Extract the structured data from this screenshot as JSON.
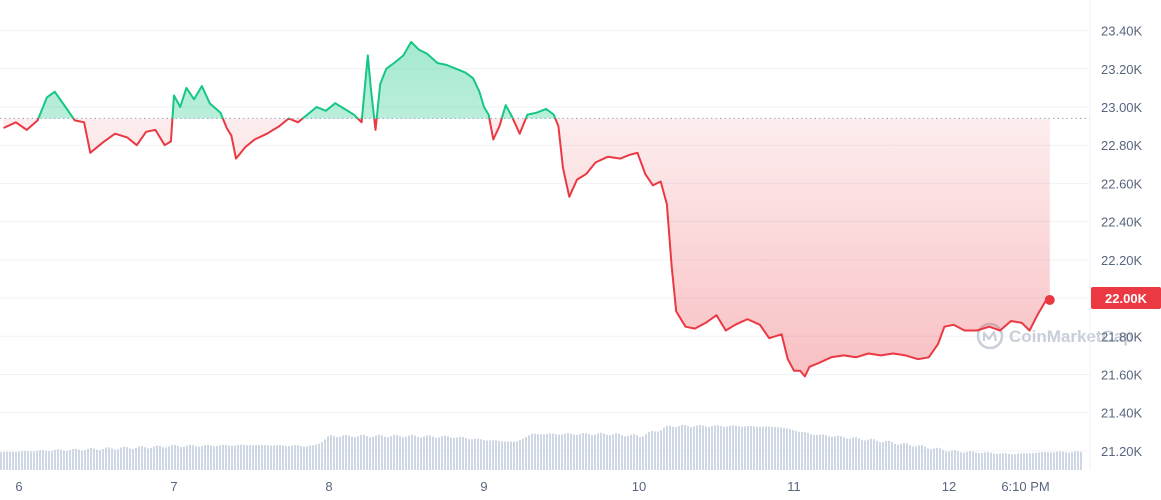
{
  "chart_data": {
    "type": "line",
    "title": "",
    "xlabel": "",
    "ylabel": "",
    "ylim": [
      21100,
      23560
    ],
    "y_ticks": [
      "23.40K",
      "23.20K",
      "23.00K",
      "22.80K",
      "22.60K",
      "22.40K",
      "22.20K",
      "22.00K",
      "21.80K",
      "21.60K",
      "21.40K",
      "21.20K"
    ],
    "x_ticks": [
      "6",
      "7",
      "8",
      "9",
      "10",
      "11",
      "12",
      "6:10 PM"
    ],
    "reference_price": 22940,
    "current_price_label": "22.00K",
    "colors": {
      "up": "#16c784",
      "down": "#ea3943",
      "volume": "#cfd6e4",
      "axis_text": "#58667e"
    },
    "series": [
      {
        "values": [
          {
            "x": 5.9,
            "y": 22890
          },
          {
            "x": 5.98,
            "y": 22920
          },
          {
            "x": 6.05,
            "y": 22880
          },
          {
            "x": 6.12,
            "y": 22930
          },
          {
            "x": 6.18,
            "y": 23050
          },
          {
            "x": 6.23,
            "y": 23080
          },
          {
            "x": 6.3,
            "y": 23000
          },
          {
            "x": 6.36,
            "y": 22930
          },
          {
            "x": 6.42,
            "y": 22920
          },
          {
            "x": 6.46,
            "y": 22760
          },
          {
            "x": 6.55,
            "y": 22820
          },
          {
            "x": 6.62,
            "y": 22860
          },
          {
            "x": 6.7,
            "y": 22840
          },
          {
            "x": 6.76,
            "y": 22800
          },
          {
            "x": 6.82,
            "y": 22870
          },
          {
            "x": 6.88,
            "y": 22880
          },
          {
            "x": 6.94,
            "y": 22800
          },
          {
            "x": 6.98,
            "y": 22820
          },
          {
            "x": 7.0,
            "y": 23060
          },
          {
            "x": 7.04,
            "y": 23000
          },
          {
            "x": 7.08,
            "y": 23100
          },
          {
            "x": 7.13,
            "y": 23040
          },
          {
            "x": 7.18,
            "y": 23110
          },
          {
            "x": 7.23,
            "y": 23020
          },
          {
            "x": 7.3,
            "y": 22970
          },
          {
            "x": 7.34,
            "y": 22890
          },
          {
            "x": 7.37,
            "y": 22850
          },
          {
            "x": 7.4,
            "y": 22730
          },
          {
            "x": 7.46,
            "y": 22790
          },
          {
            "x": 7.52,
            "y": 22830
          },
          {
            "x": 7.6,
            "y": 22860
          },
          {
            "x": 7.68,
            "y": 22900
          },
          {
            "x": 7.74,
            "y": 22940
          },
          {
            "x": 7.8,
            "y": 22920
          },
          {
            "x": 7.86,
            "y": 22960
          },
          {
            "x": 7.92,
            "y": 23000
          },
          {
            "x": 7.98,
            "y": 22980
          },
          {
            "x": 8.04,
            "y": 23020
          },
          {
            "x": 8.1,
            "y": 22990
          },
          {
            "x": 8.16,
            "y": 22960
          },
          {
            "x": 8.21,
            "y": 22920
          },
          {
            "x": 8.25,
            "y": 23270
          },
          {
            "x": 8.27,
            "y": 23100
          },
          {
            "x": 8.3,
            "y": 22880
          },
          {
            "x": 8.33,
            "y": 23120
          },
          {
            "x": 8.37,
            "y": 23200
          },
          {
            "x": 8.42,
            "y": 23230
          },
          {
            "x": 8.48,
            "y": 23270
          },
          {
            "x": 8.53,
            "y": 23340
          },
          {
            "x": 8.58,
            "y": 23300
          },
          {
            "x": 8.63,
            "y": 23280
          },
          {
            "x": 8.7,
            "y": 23230
          },
          {
            "x": 8.76,
            "y": 23220
          },
          {
            "x": 8.82,
            "y": 23200
          },
          {
            "x": 8.88,
            "y": 23180
          },
          {
            "x": 8.93,
            "y": 23150
          },
          {
            "x": 8.97,
            "y": 23080
          },
          {
            "x": 9.0,
            "y": 23000
          },
          {
            "x": 9.03,
            "y": 22960
          },
          {
            "x": 9.06,
            "y": 22830
          },
          {
            "x": 9.1,
            "y": 22900
          },
          {
            "x": 9.14,
            "y": 23010
          },
          {
            "x": 9.18,
            "y": 22950
          },
          {
            "x": 9.23,
            "y": 22860
          },
          {
            "x": 9.28,
            "y": 22960
          },
          {
            "x": 9.34,
            "y": 22970
          },
          {
            "x": 9.4,
            "y": 22990
          },
          {
            "x": 9.45,
            "y": 22960
          },
          {
            "x": 9.48,
            "y": 22900
          },
          {
            "x": 9.51,
            "y": 22680
          },
          {
            "x": 9.55,
            "y": 22530
          },
          {
            "x": 9.6,
            "y": 22620
          },
          {
            "x": 9.66,
            "y": 22650
          },
          {
            "x": 9.72,
            "y": 22710
          },
          {
            "x": 9.8,
            "y": 22740
          },
          {
            "x": 9.88,
            "y": 22730
          },
          {
            "x": 9.94,
            "y": 22750
          },
          {
            "x": 9.99,
            "y": 22760
          },
          {
            "x": 10.04,
            "y": 22650
          },
          {
            "x": 10.09,
            "y": 22590
          },
          {
            "x": 10.14,
            "y": 22610
          },
          {
            "x": 10.18,
            "y": 22490
          },
          {
            "x": 10.21,
            "y": 22170
          },
          {
            "x": 10.24,
            "y": 21930
          },
          {
            "x": 10.3,
            "y": 21850
          },
          {
            "x": 10.36,
            "y": 21840
          },
          {
            "x": 10.43,
            "y": 21870
          },
          {
            "x": 10.5,
            "y": 21910
          },
          {
            "x": 10.56,
            "y": 21830
          },
          {
            "x": 10.62,
            "y": 21860
          },
          {
            "x": 10.7,
            "y": 21890
          },
          {
            "x": 10.78,
            "y": 21860
          },
          {
            "x": 10.84,
            "y": 21790
          },
          {
            "x": 10.92,
            "y": 21810
          },
          {
            "x": 10.96,
            "y": 21680
          },
          {
            "x": 11.0,
            "y": 21620
          },
          {
            "x": 11.04,
            "y": 21620
          },
          {
            "x": 11.07,
            "y": 21590
          },
          {
            "x": 11.1,
            "y": 21640
          },
          {
            "x": 11.16,
            "y": 21660
          },
          {
            "x": 11.24,
            "y": 21690
          },
          {
            "x": 11.32,
            "y": 21700
          },
          {
            "x": 11.4,
            "y": 21690
          },
          {
            "x": 11.48,
            "y": 21710
          },
          {
            "x": 11.56,
            "y": 21700
          },
          {
            "x": 11.64,
            "y": 21710
          },
          {
            "x": 11.72,
            "y": 21700
          },
          {
            "x": 11.8,
            "y": 21680
          },
          {
            "x": 11.87,
            "y": 21690
          },
          {
            "x": 11.93,
            "y": 21760
          },
          {
            "x": 11.97,
            "y": 21850
          },
          {
            "x": 12.03,
            "y": 21860
          },
          {
            "x": 12.1,
            "y": 21830
          },
          {
            "x": 12.18,
            "y": 21830
          },
          {
            "x": 12.26,
            "y": 21850
          },
          {
            "x": 12.33,
            "y": 21830
          },
          {
            "x": 12.4,
            "y": 21880
          },
          {
            "x": 12.47,
            "y": 21870
          },
          {
            "x": 12.52,
            "y": 21830
          },
          {
            "x": 12.57,
            "y": 21910
          },
          {
            "x": 12.62,
            "y": 21980
          },
          {
            "x": 12.65,
            "y": 21990
          }
        ]
      }
    ],
    "volume": [
      {
        "x": 5.9,
        "v": 0.18
      },
      {
        "x": 6.5,
        "v": 0.21
      },
      {
        "x": 7.0,
        "v": 0.24
      },
      {
        "x": 7.5,
        "v": 0.25
      },
      {
        "x": 7.9,
        "v": 0.24
      },
      {
        "x": 8.0,
        "v": 0.34
      },
      {
        "x": 8.5,
        "v": 0.34
      },
      {
        "x": 8.8,
        "v": 0.33
      },
      {
        "x": 9.0,
        "v": 0.3
      },
      {
        "x": 9.2,
        "v": 0.28
      },
      {
        "x": 9.3,
        "v": 0.36
      },
      {
        "x": 9.8,
        "v": 0.36
      },
      {
        "x": 10.0,
        "v": 0.34
      },
      {
        "x": 10.2,
        "v": 0.44
      },
      {
        "x": 10.6,
        "v": 0.44
      },
      {
        "x": 10.9,
        "v": 0.43
      },
      {
        "x": 11.1,
        "v": 0.36
      },
      {
        "x": 11.5,
        "v": 0.3
      },
      {
        "x": 11.8,
        "v": 0.24
      },
      {
        "x": 12.0,
        "v": 0.19
      },
      {
        "x": 12.4,
        "v": 0.16
      },
      {
        "x": 12.65,
        "v": 0.18
      }
    ],
    "legend": "none",
    "grid": true,
    "watermark_text": "CoinMarketCap"
  }
}
